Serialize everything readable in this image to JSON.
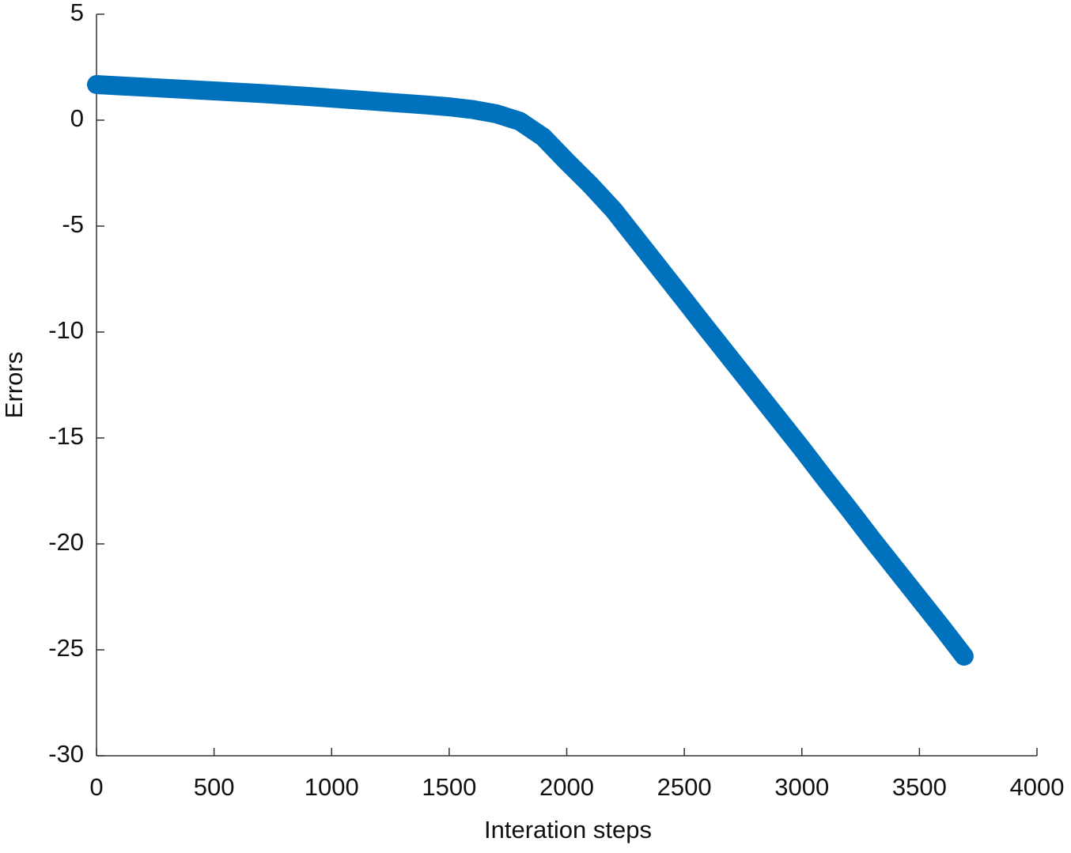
{
  "chart_data": {
    "type": "line",
    "x_label": "Interation steps",
    "y_label": "Errors",
    "x": [
      0,
      100,
      200,
      300,
      400,
      500,
      600,
      700,
      800,
      900,
      1000,
      1100,
      1200,
      1300,
      1400,
      1500,
      1600,
      1700,
      1800,
      1900,
      2000,
      2100,
      2200,
      2300,
      2400,
      2500,
      2600,
      2700,
      2800,
      2900,
      3000,
      3100,
      3200,
      3300,
      3400,
      3500,
      3600,
      3690
    ],
    "series": [
      {
        "color": "#0072bd",
        "values": [
          1.68,
          1.62,
          1.56,
          1.5,
          1.44,
          1.38,
          1.32,
          1.26,
          1.19,
          1.12,
          1.04,
          0.96,
          0.88,
          0.8,
          0.72,
          0.63,
          0.5,
          0.3,
          -0.05,
          -0.8,
          -1.95,
          -3.05,
          -4.25,
          -5.66,
          -7.07,
          -8.48,
          -9.9,
          -11.3,
          -12.7,
          -14.1,
          -15.5,
          -16.95,
          -18.35,
          -19.8,
          -21.2,
          -22.6,
          -24.0,
          -25.3
        ]
      }
    ],
    "xlim": [
      0,
      4000
    ],
    "xticks": [
      0,
      500,
      1000,
      1500,
      2000,
      2500,
      3000,
      3500,
      4000
    ],
    "ylim": [
      -30,
      5
    ],
    "yticks": [
      5,
      0,
      -5,
      -10,
      -15,
      -20,
      -25,
      -30
    ]
  }
}
